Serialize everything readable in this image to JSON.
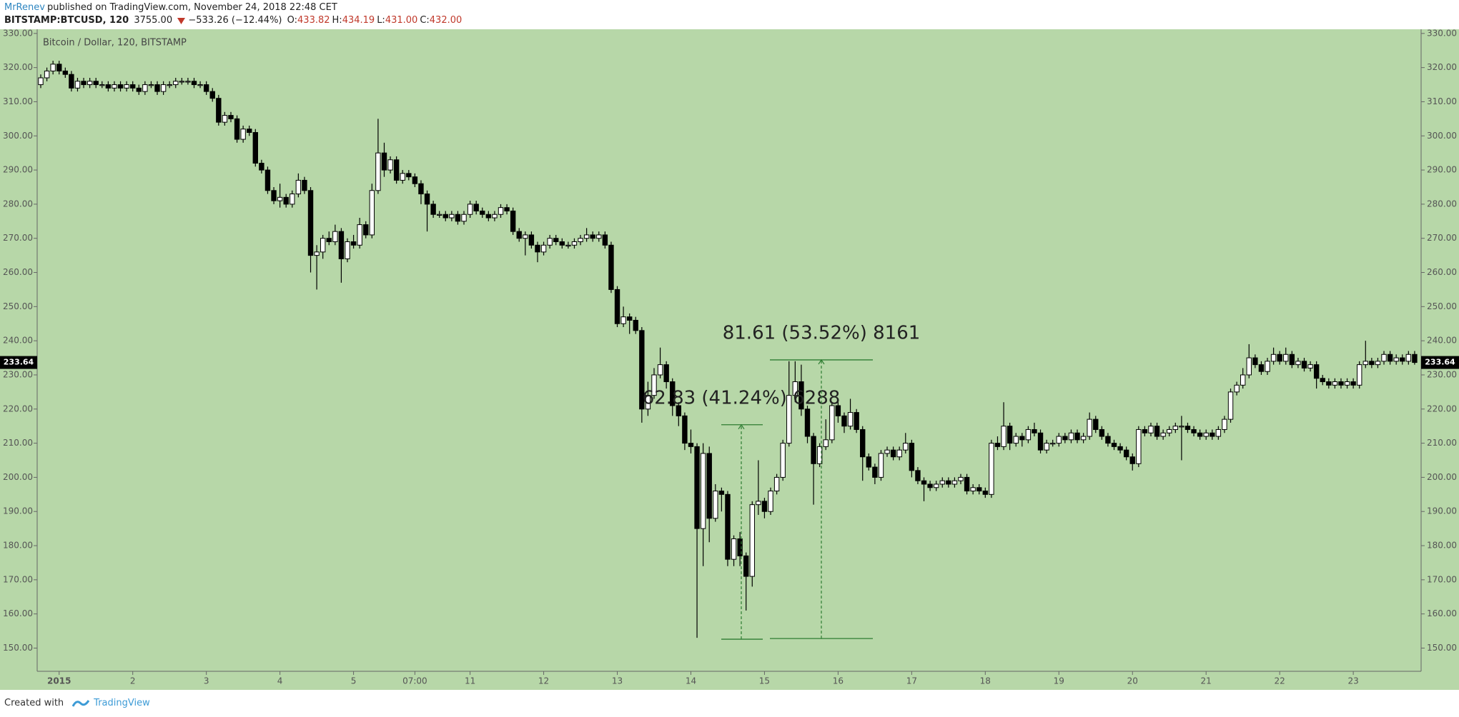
{
  "header": {
    "author": "MrRenev",
    "published": "published on TradingView.com, November 24, 2018 22:48 CET",
    "symbol": "BITSTAMP:BTCUSD, 120",
    "last": "3755.00",
    "change": "−533.26 (−12.44%)",
    "ohlc": [
      {
        "key": "O:",
        "value": "433.82"
      },
      {
        "key": "H:",
        "value": "434.19"
      },
      {
        "key": "L:",
        "value": "431.00"
      },
      {
        "key": "C:",
        "value": "432.00"
      }
    ]
  },
  "footer": {
    "created": "Created with",
    "brand": "TradingView"
  },
  "chart_data": {
    "type": "candlestick",
    "title": "Bitcoin / Dollar, 120, BITSTAMP",
    "background": "#b7d7a8",
    "up_color": "#ffffff",
    "down_color": "#000000",
    "categories": [
      null,
      null,
      null,
      "2015",
      null,
      null,
      null,
      null,
      null,
      null,
      null,
      null,
      null,
      null,
      null,
      "2",
      null,
      null,
      null,
      null,
      null,
      null,
      null,
      null,
      null,
      null,
      null,
      "3",
      null,
      null,
      null,
      null,
      null,
      null,
      null,
      null,
      null,
      null,
      null,
      "4",
      null,
      null,
      null,
      null,
      null,
      null,
      null,
      null,
      null,
      null,
      null,
      "5",
      null,
      null,
      null,
      null,
      null,
      null,
      null,
      null,
      null,
      "07:00",
      null,
      null,
      null,
      null,
      null,
      null,
      null,
      null,
      "11",
      null,
      null,
      null,
      null,
      null,
      null,
      null,
      null,
      null,
      null,
      null,
      "12",
      null,
      null,
      null,
      null,
      null,
      null,
      null,
      null,
      null,
      null,
      null,
      "13",
      null,
      null,
      null,
      null,
      null,
      null,
      null,
      null,
      null,
      null,
      null,
      "14",
      null,
      null,
      null,
      null,
      null,
      null,
      null,
      null,
      null,
      null,
      null,
      "15",
      null,
      null,
      null,
      null,
      null,
      null,
      null,
      null,
      null,
      null,
      null,
      "16",
      null,
      null,
      null,
      null,
      null,
      null,
      null,
      null,
      null,
      null,
      null,
      "17",
      null,
      null,
      null,
      null,
      null,
      null,
      null,
      null,
      null,
      null,
      null,
      "18",
      null,
      null,
      null,
      null,
      null,
      null,
      null,
      null,
      null,
      null,
      null,
      "19",
      null,
      null,
      null,
      null,
      null,
      null,
      null,
      null,
      null,
      null,
      null,
      "20",
      null,
      null,
      null,
      null,
      null,
      null,
      null,
      null,
      null,
      null,
      null,
      "21",
      null,
      null,
      null,
      null,
      null,
      null,
      null,
      null,
      null,
      null,
      null,
      "22",
      null,
      null,
      null,
      null,
      null,
      null,
      null,
      null,
      null,
      null,
      null,
      "23",
      null,
      null,
      null,
      null,
      null,
      null,
      null,
      null,
      null,
      null
    ],
    "open": [
      315,
      317,
      319,
      321,
      319,
      318,
      314,
      316,
      315,
      316,
      315,
      315,
      314,
      315,
      314,
      315,
      314,
      313,
      315,
      315,
      313,
      315,
      315,
      316,
      316,
      316,
      315,
      315,
      313,
      311,
      304,
      306,
      305,
      299,
      302,
      301,
      292,
      290,
      284,
      281,
      282,
      280,
      283,
      287,
      284,
      265,
      266,
      270,
      269,
      272,
      264,
      269,
      268,
      274,
      271,
      284,
      295,
      290,
      293,
      287,
      289,
      288,
      286,
      283,
      280,
      277,
      277,
      276,
      277,
      275,
      277,
      280,
      278,
      277,
      276,
      277,
      279,
      278,
      272,
      270,
      271,
      268,
      266,
      268,
      270,
      269,
      268,
      268,
      269,
      270,
      271,
      270,
      271,
      268,
      255,
      245,
      247,
      246,
      243,
      220,
      224,
      230,
      233,
      228,
      221,
      218,
      210,
      209,
      185,
      207,
      188,
      196,
      195,
      176,
      182,
      177,
      171,
      192,
      193,
      190,
      196,
      200,
      210,
      224,
      228,
      220,
      212,
      204,
      209,
      211,
      221,
      218,
      215,
      219,
      214,
      206,
      203,
      200,
      207,
      208,
      206,
      208,
      210,
      202,
      199,
      198,
      197,
      198,
      199,
      198,
      199,
      200,
      196,
      197,
      196,
      195,
      210,
      209,
      215,
      210,
      212,
      211,
      214,
      213,
      208,
      210,
      210,
      212,
      211,
      213,
      211,
      212,
      217,
      214,
      212,
      210,
      209,
      208,
      206,
      204,
      214,
      213,
      215,
      212,
      213,
      214,
      215,
      215,
      214,
      213,
      212,
      213,
      212,
      214,
      217,
      225,
      227,
      230,
      235,
      233,
      231,
      234,
      236,
      234,
      236,
      233,
      234,
      232,
      233,
      229,
      228,
      227,
      228,
      227,
      228,
      227,
      233,
      234,
      233,
      234,
      236,
      234,
      235,
      234,
      236
    ],
    "high": [
      318,
      320,
      322,
      322,
      320,
      319,
      317,
      317,
      317,
      317,
      316,
      316,
      316,
      316,
      316,
      316,
      315,
      316,
      316,
      316,
      316,
      316,
      317,
      317,
      317,
      317,
      316,
      316,
      314,
      312,
      307,
      307,
      306,
      303,
      303,
      302,
      293,
      291,
      285,
      286,
      283,
      284,
      289,
      288,
      285,
      268,
      271,
      272,
      274,
      273,
      270,
      271,
      276,
      275,
      286,
      305,
      298,
      294,
      294,
      290,
      290,
      289,
      287,
      284,
      281,
      278,
      278,
      278,
      278,
      278,
      281,
      281,
      279,
      278,
      278,
      280,
      280,
      279,
      273,
      272,
      272,
      269,
      269,
      271,
      271,
      270,
      269,
      270,
      271,
      273,
      272,
      272,
      272,
      269,
      256,
      250,
      248,
      247,
      244,
      228,
      232,
      238,
      234,
      229,
      222,
      219,
      214,
      210,
      210,
      209,
      198,
      197,
      196,
      183,
      184,
      178,
      193,
      205,
      194,
      197,
      201,
      211,
      234,
      234,
      233,
      221,
      213,
      210,
      217,
      222,
      222,
      219,
      223,
      220,
      215,
      207,
      204,
      208,
      209,
      209,
      209,
      213,
      211,
      203,
      200,
      199,
      199,
      200,
      200,
      200,
      201,
      201,
      198,
      198,
      197,
      211,
      212,
      222,
      216,
      213,
      213,
      215,
      216,
      214,
      211,
      211,
      213,
      213,
      214,
      214,
      213,
      219,
      218,
      215,
      213,
      211,
      210,
      209,
      207,
      215,
      215,
      216,
      216,
      214,
      215,
      216,
      218,
      216,
      215,
      214,
      214,
      214,
      215,
      218,
      226,
      228,
      232,
      239,
      236,
      234,
      235,
      238,
      237,
      238,
      237,
      235,
      235,
      234,
      234,
      230,
      229,
      229,
      229,
      229,
      229,
      234,
      240,
      235,
      235,
      237,
      237,
      236,
      236,
      237,
      237
    ],
    "low": [
      314,
      316,
      318,
      318,
      317,
      313,
      313,
      314,
      314,
      314,
      314,
      313,
      313,
      313,
      313,
      313,
      312,
      312,
      314,
      312,
      312,
      314,
      314,
      315,
      315,
      314,
      314,
      312,
      310,
      303,
      303,
      304,
      298,
      298,
      300,
      291,
      289,
      283,
      280,
      279,
      279,
      279,
      282,
      283,
      260,
      255,
      264,
      268,
      268,
      257,
      263,
      267,
      267,
      270,
      270,
      283,
      288,
      289,
      286,
      286,
      287,
      285,
      280,
      272,
      276,
      276,
      275,
      275,
      274,
      274,
      276,
      277,
      276,
      275,
      275,
      276,
      277,
      271,
      269,
      265,
      267,
      263,
      265,
      267,
      268,
      267,
      267,
      267,
      268,
      269,
      269,
      269,
      267,
      254,
      244,
      244,
      242,
      242,
      216,
      218,
      223,
      229,
      226,
      218,
      215,
      208,
      207,
      153,
      174,
      181,
      187,
      190,
      174,
      174,
      174,
      161,
      168,
      189,
      188,
      189,
      195,
      199,
      209,
      222,
      218,
      210,
      192,
      203,
      208,
      210,
      216,
      213,
      214,
      213,
      199,
      202,
      198,
      199,
      206,
      205,
      205,
      207,
      200,
      198,
      193,
      196,
      196,
      197,
      197,
      197,
      198,
      195,
      195,
      195,
      194,
      194,
      208,
      208,
      208,
      209,
      209,
      210,
      212,
      207,
      207,
      209,
      209,
      210,
      210,
      210,
      210,
      211,
      213,
      211,
      209,
      208,
      207,
      205,
      202,
      203,
      212,
      212,
      211,
      211,
      212,
      213,
      205,
      213,
      212,
      211,
      211,
      211,
      211,
      213,
      216,
      224,
      226,
      229,
      232,
      230,
      230,
      233,
      233,
      233,
      232,
      232,
      231,
      231,
      226,
      227,
      226,
      226,
      226,
      226,
      226,
      226,
      232,
      232,
      232,
      233,
      233,
      233,
      233,
      233,
      233
    ],
    "close": [
      317,
      319,
      321,
      319,
      318,
      314,
      316,
      315,
      316,
      315,
      315,
      314,
      315,
      314,
      315,
      314,
      313,
      315,
      315,
      313,
      315,
      315,
      316,
      316,
      316,
      315,
      315,
      313,
      311,
      304,
      306,
      305,
      299,
      302,
      301,
      292,
      290,
      284,
      281,
      282,
      280,
      283,
      287,
      284,
      265,
      266,
      270,
      269,
      272,
      264,
      269,
      268,
      274,
      271,
      284,
      295,
      290,
      293,
      287,
      289,
      288,
      286,
      283,
      280,
      277,
      277,
      276,
      277,
      275,
      277,
      280,
      278,
      277,
      276,
      277,
      279,
      278,
      272,
      270,
      271,
      268,
      266,
      268,
      270,
      269,
      268,
      268,
      269,
      270,
      271,
      270,
      271,
      268,
      255,
      245,
      247,
      246,
      243,
      220,
      224,
      230,
      233,
      228,
      221,
      218,
      210,
      209,
      185,
      207,
      188,
      196,
      195,
      176,
      182,
      177,
      171,
      192,
      193,
      190,
      196,
      200,
      210,
      224,
      228,
      220,
      212,
      204,
      209,
      211,
      221,
      218,
      215,
      219,
      214,
      206,
      203,
      200,
      207,
      208,
      206,
      208,
      210,
      202,
      199,
      198,
      197,
      198,
      199,
      198,
      199,
      200,
      196,
      197,
      196,
      195,
      210,
      209,
      215,
      210,
      212,
      211,
      214,
      213,
      208,
      210,
      210,
      212,
      211,
      213,
      211,
      212,
      217,
      214,
      212,
      210,
      209,
      208,
      206,
      204,
      214,
      213,
      215,
      212,
      213,
      214,
      215,
      215,
      214,
      213,
      212,
      213,
      212,
      214,
      217,
      225,
      227,
      230,
      235,
      233,
      231,
      234,
      236,
      234,
      236,
      233,
      234,
      232,
      233,
      229,
      228,
      227,
      228,
      227,
      228,
      227,
      233,
      234,
      233,
      234,
      236,
      234,
      235,
      234,
      236,
      233.64
    ],
    "last_price": 233.64,
    "ylim": [
      143.2,
      330.8
    ],
    "yticks": [
      {
        "value": 150,
        "label": "150.00"
      },
      {
        "value": 160,
        "label": "160.00"
      },
      {
        "value": 170,
        "label": "170.00"
      },
      {
        "value": 180,
        "label": "180.00"
      },
      {
        "value": 190,
        "label": "190.00"
      },
      {
        "value": 200,
        "label": "200.00"
      },
      {
        "value": 210,
        "label": "210.00"
      },
      {
        "value": 220,
        "label": "220.00"
      },
      {
        "value": 230,
        "label": "230.00"
      },
      {
        "value": 240,
        "label": "240.00"
      },
      {
        "value": 250,
        "label": "250.00"
      },
      {
        "value": 260,
        "label": "260.00"
      },
      {
        "value": 270,
        "label": "270.00"
      },
      {
        "value": 280,
        "label": "280.00"
      },
      {
        "value": 290,
        "label": "290.00"
      },
      {
        "value": 300,
        "label": "300.00"
      },
      {
        "value": 310,
        "label": "310.00"
      },
      {
        "value": 320,
        "label": "320.00"
      },
      {
        "value": 330,
        "label": "330.00"
      }
    ],
    "annotations": [
      {
        "label": "62.83 (41.24%) 6288",
        "from": 152.6,
        "to": 215.4
      },
      {
        "label": "81.61 (53.52%) 8161",
        "from": 152.8,
        "to": 234.4
      }
    ]
  }
}
